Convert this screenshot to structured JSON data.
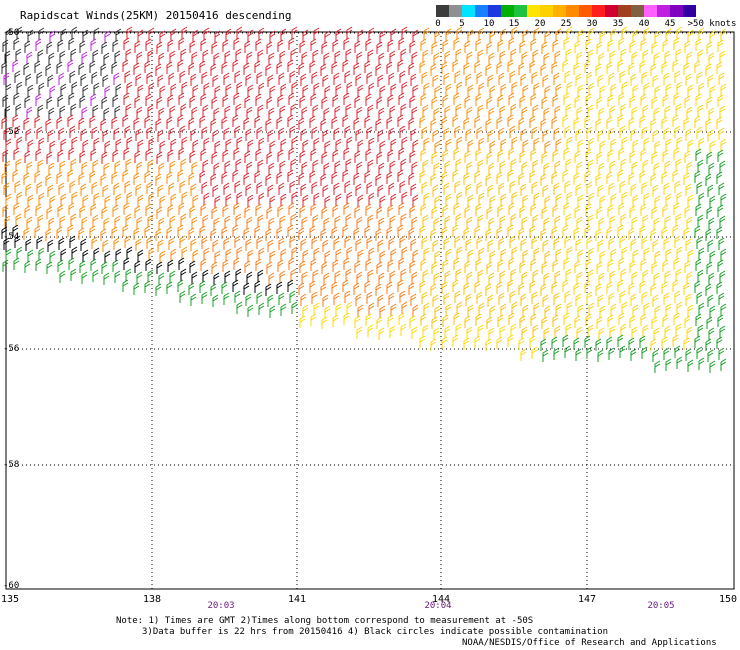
{
  "header": {
    "title": "Rapidscat Winds(25KM) 20150416 descending"
  },
  "legend": {
    "labels": [
      "0",
      "5",
      "10",
      "15",
      "20",
      "25",
      "30",
      "35",
      "40",
      "45",
      ">50 knots"
    ],
    "colors": [
      "#3c3c3c",
      "#909090",
      "#00e4ff",
      "#1680ff",
      "#1e38e0",
      "#00b000",
      "#20c040",
      "#ffe400",
      "#ffd000",
      "#ffb000",
      "#ff8a00",
      "#ff5a00",
      "#ff1e1e",
      "#d00030",
      "#a04020",
      "#806040",
      "#ff60ff",
      "#c020e0",
      "#8000c0",
      "#3000a0"
    ]
  },
  "axes": {
    "x_ticks": [
      "135",
      "138",
      "141",
      "144",
      "147",
      "150"
    ],
    "y_ticks": [
      "-50",
      "-52",
      "-54",
      "-56",
      "-58",
      "-60"
    ],
    "times": [
      "20:03",
      "20:04",
      "20:05"
    ]
  },
  "footer": {
    "note1": "Note: 1) Times are GMT 2)Times along bottom correspond to measurement at -50S",
    "note2": "3)Data buffer is 22 hrs from 20150416 4) Black circles indicate possible contamination",
    "credit": "NOAA/NESDIS/Office of Research and Applications"
  }
}
